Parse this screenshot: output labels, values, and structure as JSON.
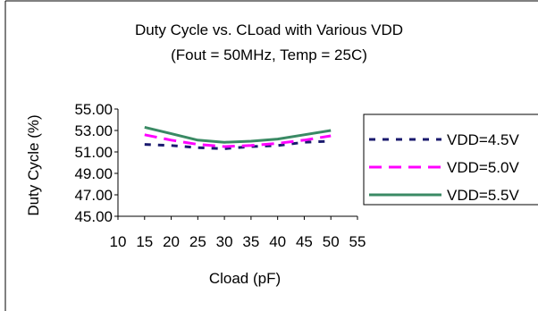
{
  "chart_data": {
    "type": "line",
    "title": "Duty Cycle vs. CLoad with Various VDD",
    "subtitle": "(Fout = 50MHz, Temp = 25C)",
    "xlabel": "Cload (pF)",
    "ylabel": "Duty Cycle (%)",
    "xlim": [
      10,
      55
    ],
    "ylim": [
      45,
      55
    ],
    "x_ticks": [
      "10",
      "15",
      "20",
      "25",
      "30",
      "35",
      "40",
      "45",
      "50",
      "55"
    ],
    "y_ticks": [
      "55.00",
      "53.00",
      "51.00",
      "49.00",
      "47.00",
      "45.00"
    ],
    "grid": false,
    "legend_position": "right",
    "x": [
      15,
      20,
      25,
      30,
      35,
      40,
      45,
      50
    ],
    "series": [
      {
        "name": "VDD=4.5V",
        "values": [
          51.7,
          51.6,
          51.4,
          51.3,
          51.5,
          51.6,
          51.9,
          52.0
        ],
        "color": "#1a1a6e",
        "dash": "dotted"
      },
      {
        "name": "VDD=5.0V",
        "values": [
          52.6,
          52.1,
          51.7,
          51.5,
          51.6,
          51.8,
          52.1,
          52.5
        ],
        "color": "#ff00ff",
        "dash": "dashed"
      },
      {
        "name": "VDD=5.5V",
        "values": [
          53.3,
          52.7,
          52.1,
          51.9,
          52.0,
          52.2,
          52.6,
          53.0
        ],
        "color": "#3a8a64",
        "dash": "solid"
      }
    ]
  }
}
